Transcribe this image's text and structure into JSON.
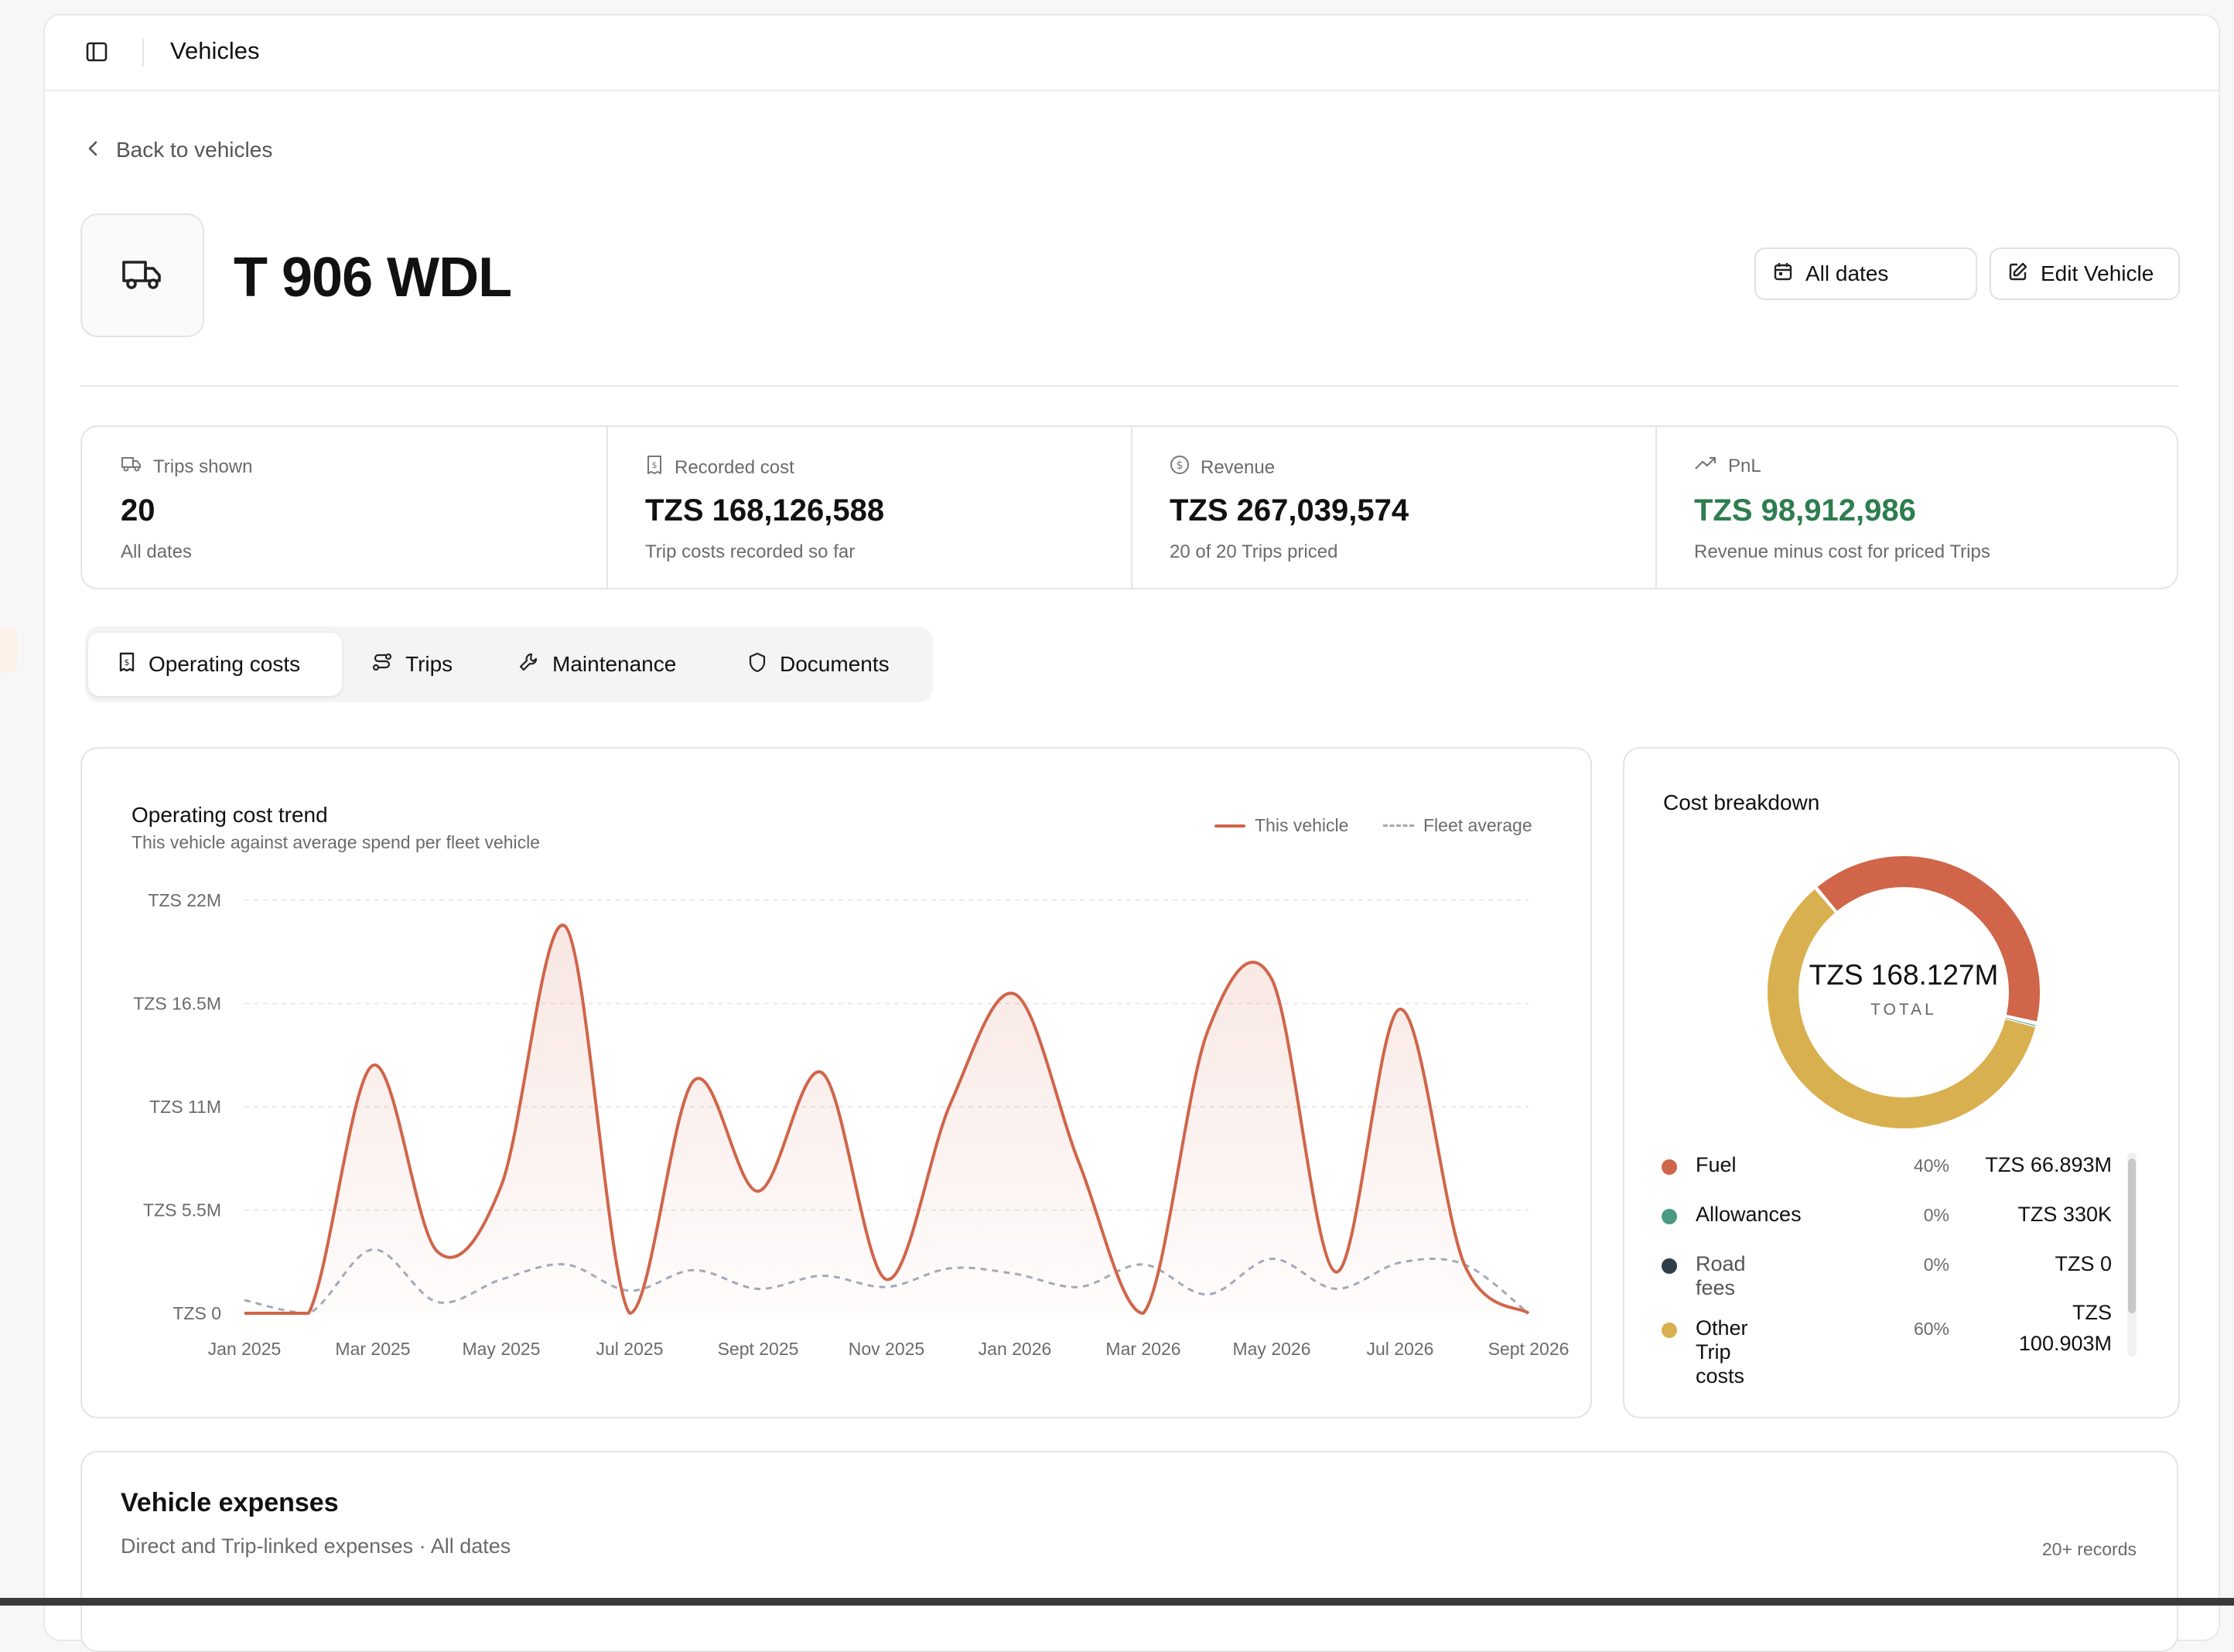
{
  "header": {
    "title": "Vehicles"
  },
  "nav": {
    "back_label": "Back to vehicles"
  },
  "vehicle": {
    "plate": "T 906 WDL"
  },
  "actions": {
    "dates_label": "All dates",
    "edit_label": "Edit Vehicle"
  },
  "stats": [
    {
      "label": "Trips shown",
      "value": "20",
      "sub": "All dates",
      "icon": "truck-icon"
    },
    {
      "label": "Recorded cost",
      "value": "TZS 168,126,588",
      "sub": "Trip costs recorded so far",
      "icon": "receipt-icon"
    },
    {
      "label": "Revenue",
      "value": "TZS 267,039,574",
      "sub": "20 of 20 Trips priced",
      "icon": "dollar-icon"
    },
    {
      "label": "PnL",
      "value": "TZS 98,912,986",
      "sub": "Revenue minus cost for priced Trips",
      "icon": "trend-up-icon",
      "color": "#2e7d4f"
    }
  ],
  "tabs": [
    {
      "label": "Operating costs",
      "active": true,
      "icon": "receipt-icon"
    },
    {
      "label": "Trips",
      "icon": "route-icon"
    },
    {
      "label": "Maintenance",
      "icon": "wrench-icon"
    },
    {
      "label": "Documents",
      "icon": "shield-icon"
    }
  ],
  "trend": {
    "title": "Operating cost trend",
    "subtitle": "This vehicle against average spend per fleet vehicle"
  },
  "chart_data": {
    "type": "line",
    "title": "Operating cost trend",
    "subtitle": "This vehicle against average spend per fleet vehicle",
    "x": [
      "Jan 2025",
      "Feb 2025",
      "Mar 2025",
      "Apr 2025",
      "May 2025",
      "Jun 2025",
      "Jul 2025",
      "Aug 2025",
      "Sept 2025",
      "Oct 2025",
      "Nov 2025",
      "Dec 2025",
      "Jan 2026",
      "Feb 2026",
      "Mar 2026",
      "Apr 2026",
      "May 2026",
      "Jun 2026",
      "Jul 2026",
      "Aug 2026",
      "Sept 2026"
    ],
    "x_tick_labels": [
      "Jan 2025",
      "Mar 2025",
      "May 2025",
      "Jul 2025",
      "Sept 2025",
      "Nov 2025",
      "Jan 2026",
      "Mar 2026",
      "May 2026",
      "Jul 2026",
      "Sept 2026"
    ],
    "y_tick_labels": [
      "TZS 0",
      "TZS 5.5M",
      "TZS 11M",
      "TZS 16.5M",
      "TZS 22M"
    ],
    "ylim": [
      0,
      22
    ],
    "y_unit": "M TZS",
    "series": [
      {
        "name": "This vehicle",
        "color": "#d0654a",
        "values": [
          0,
          0,
          13.2,
          3.3,
          6.8,
          20.6,
          0,
          12.4,
          6.5,
          12.8,
          1.8,
          11.2,
          17.0,
          8.0,
          0,
          15.0,
          17.8,
          2.2,
          16.2,
          2.6,
          0
        ]
      },
      {
        "name": "Fleet average",
        "color": "#a4a9b8",
        "dashed": true,
        "values": [
          0.7,
          0,
          3.4,
          0.6,
          1.8,
          2.6,
          1.2,
          2.3,
          1.3,
          2.0,
          1.4,
          2.4,
          2.1,
          1.4,
          2.6,
          1.0,
          2.9,
          1.3,
          2.7,
          2.6,
          0
        ]
      }
    ],
    "grid": true,
    "legend": "top-right"
  },
  "breakdown": {
    "title": "Cost breakdown",
    "total_value": "TZS 168.127M",
    "total_label": "TOTAL",
    "items": [
      {
        "label": "Fuel",
        "pct": "40%",
        "value": "TZS 66.893M",
        "color": "#d0654a",
        "share": 0.398
      },
      {
        "label": "Allowances",
        "pct": "0%",
        "value": "TZS 330K",
        "color": "#4c9a86",
        "share": 0.002
      },
      {
        "label": "Road fees",
        "pct": "0%",
        "value": "TZS 0",
        "color": "#2f3e48",
        "share": 0.0
      },
      {
        "label": "Other Trip costs",
        "pct": "60%",
        "value_line1": "TZS",
        "value_line2": "100.903M",
        "color": "#d9b04f",
        "share": 0.6
      }
    ]
  },
  "expenses": {
    "title": "Vehicle expenses",
    "subtitle": "Direct and Trip-linked expenses · All dates",
    "count": "20+ records"
  }
}
